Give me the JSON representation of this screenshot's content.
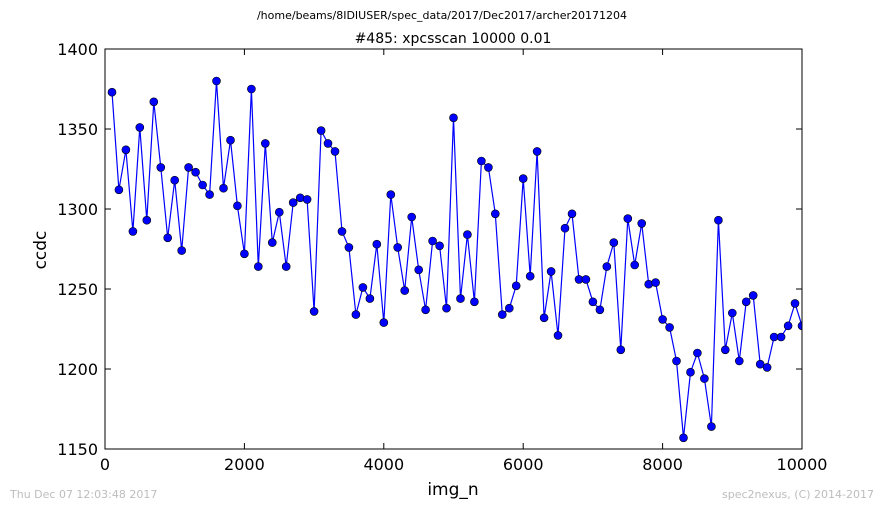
{
  "chart_data": {
    "type": "line",
    "suptitle": "/home/beams/8IDIUSER/spec_data/2017/Dec2017/archer20171204",
    "title": "#485: xpcsscan 10000 0.01",
    "xlabel": "img_n",
    "ylabel": "ccdc",
    "xlim": [
      0,
      10000
    ],
    "ylim": [
      1150,
      1400
    ],
    "xticks": [
      0,
      2000,
      4000,
      6000,
      8000,
      10000
    ],
    "yticks": [
      1150,
      1200,
      1250,
      1300,
      1350,
      1400
    ],
    "x_tick_labels": [
      "0",
      "2000",
      "4000",
      "6000",
      "8000",
      "10000"
    ],
    "y_tick_labels": [
      "1150",
      "1200",
      "1250",
      "1300",
      "1350",
      "1400"
    ],
    "grid": false,
    "series": [
      {
        "color": "#0000ff",
        "marker": "circle",
        "x": [
          100,
          200,
          300,
          400,
          500,
          600,
          700,
          800,
          900,
          1000,
          1100,
          1200,
          1300,
          1400,
          1500,
          1600,
          1700,
          1800,
          1900,
          2000,
          2100,
          2200,
          2300,
          2400,
          2500,
          2600,
          2700,
          2800,
          2900,
          3000,
          3100,
          3200,
          3300,
          3400,
          3500,
          3600,
          3700,
          3800,
          3900,
          4000,
          4100,
          4200,
          4300,
          4400,
          4500,
          4600,
          4700,
          4800,
          4900,
          5000,
          5100,
          5200,
          5300,
          5400,
          5500,
          5600,
          5700,
          5800,
          5900,
          6000,
          6100,
          6200,
          6300,
          6400,
          6500,
          6600,
          6700,
          6800,
          6900,
          7000,
          7100,
          7200,
          7300,
          7400,
          7500,
          7600,
          7700,
          7800,
          7900,
          8000,
          8100,
          8200,
          8300,
          8400,
          8500,
          8600,
          8700,
          8800,
          8900,
          9000,
          9100,
          9200,
          9300,
          9400,
          9500,
          9600,
          9700,
          9800,
          9900,
          10000
        ],
        "y": [
          1373,
          1312,
          1337,
          1286,
          1351,
          1293,
          1367,
          1326,
          1282,
          1318,
          1274,
          1326,
          1323,
          1315,
          1309,
          1380,
          1313,
          1343,
          1302,
          1272,
          1375,
          1264,
          1341,
          1279,
          1298,
          1264,
          1304,
          1307,
          1306,
          1236,
          1349,
          1341,
          1336,
          1286,
          1276,
          1234,
          1251,
          1244,
          1278,
          1229,
          1309,
          1276,
          1249,
          1295,
          1262,
          1237,
          1280,
          1277,
          1238,
          1357,
          1244,
          1284,
          1242,
          1330,
          1326,
          1297,
          1234,
          1238,
          1252,
          1319,
          1258,
          1336,
          1232,
          1261,
          1221,
          1288,
          1297,
          1256,
          1256,
          1242,
          1237,
          1264,
          1279,
          1212,
          1294,
          1265,
          1291,
          1253,
          1254,
          1231,
          1226,
          1205,
          1157,
          1198,
          1210,
          1194,
          1164,
          1293,
          1212,
          1235,
          1205,
          1242,
          1246,
          1203,
          1201,
          1220,
          1220,
          1227,
          1241,
          1227
        ]
      }
    ]
  },
  "footer": {
    "timestamp": "Thu Dec 07 12:03:48 2017",
    "credit": "spec2nexus, (C) 2014-2017"
  }
}
